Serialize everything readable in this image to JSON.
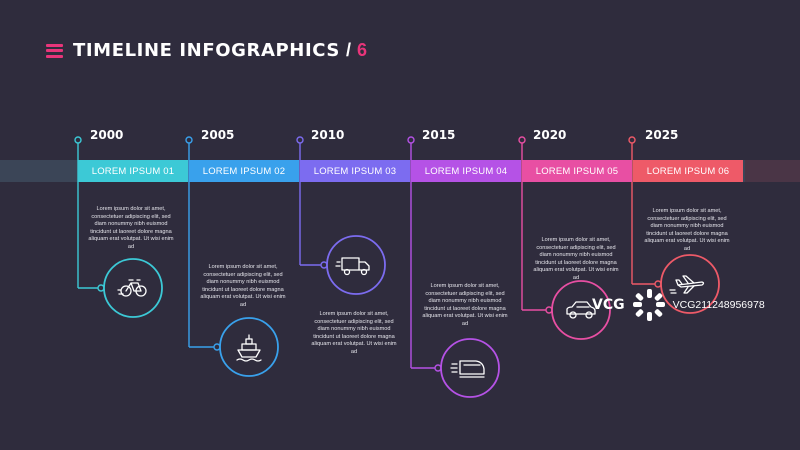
{
  "header": {
    "title": "TIMELINE INFOGRAPHICS",
    "separator": "/",
    "number": "6"
  },
  "milestones": [
    {
      "year": "2000",
      "label": "LOREM IPSUM 01",
      "icon": "bicycle-icon",
      "color": "#3cc9d6",
      "text": "Lorem ipsum dolor sit amet, consectetuer adipiscing elit, sed diam nonummy nibh euismod tincidunt ut laoreet dolore magna aliquam erat volutpat. Ut wisi enim ad"
    },
    {
      "year": "2005",
      "label": "LOREM IPSUM 02",
      "icon": "ship-icon",
      "color": "#39a1ec",
      "text": "Lorem ipsum dolor sit amet, consectetuer adipiscing elit, sed diam nonummy nibh euismod tincidunt ut laoreet dolore magna aliquam erat volutpat. Ut wisi enim ad"
    },
    {
      "year": "2010",
      "label": "LOREM IPSUM 03",
      "icon": "truck-icon",
      "color": "#7c6cf0",
      "text": "Lorem ipsum dolor sit amet, consectetuer adipiscing elit, sed diam nonummy nibh euismod tincidunt ut laoreet dolore magna aliquam erat volutpat. Ut wisi enim ad"
    },
    {
      "year": "2015",
      "label": "LOREM IPSUM 04",
      "icon": "train-icon",
      "color": "#b552e6",
      "text": "Lorem ipsum dolor sit amet, consectetuer adipiscing elit, sed diam nonummy nibh euismod tincidunt ut laoreet dolore magna aliquam erat volutpat. Ut wisi enim ad"
    },
    {
      "year": "2020",
      "label": "LOREM IPSUM 05",
      "icon": "car-icon",
      "color": "#e84fa3",
      "text": "Lorem ipsum dolor sit amet, consectetuer adipiscing elit, sed diam nonummy nibh euismod tincidunt ut laoreet dolore magna aliquam erat volutpat. Ut wisi enim ad"
    },
    {
      "year": "2025",
      "label": "LOREM IPSUM 06",
      "icon": "airplane-icon",
      "color": "#ee5a68",
      "text": "Lorem ipsum dolor sit amet, consectetuer adipiscing elit, sed diam nonummy nibh euismod tincidunt ut laoreet dolore magna aliquam erat volutpat. Ut wisi enim ad"
    }
  ],
  "watermark": {
    "brand": "VCG",
    "id": "VCG211248956978"
  }
}
